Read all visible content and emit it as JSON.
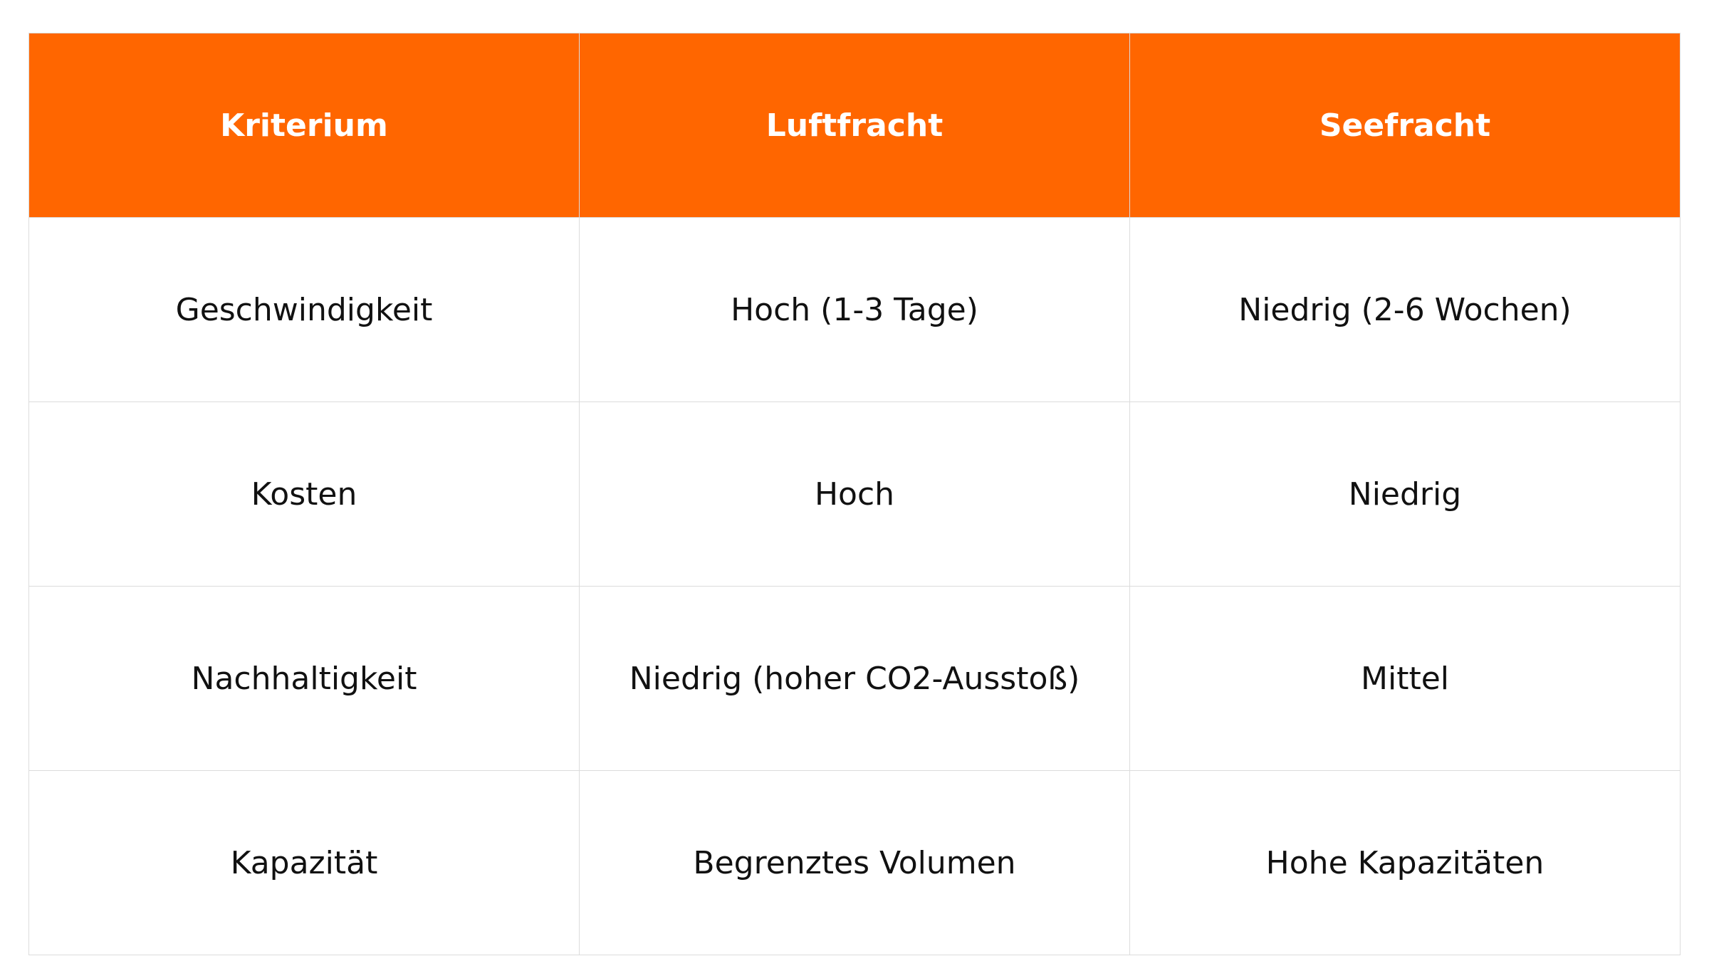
{
  "colors": {
    "header_bg": "#ff6600",
    "header_text": "#ffffff",
    "border": "#dcdcdc"
  },
  "table": {
    "headers": [
      "Kriterium",
      "Luftfracht",
      "Seefracht"
    ],
    "rows": [
      [
        "Geschwindigkeit",
        "Hoch (1-3 Tage)",
        "Niedrig (2-6 Wochen)"
      ],
      [
        "Kosten",
        "Hoch",
        "Niedrig"
      ],
      [
        "Nachhaltigkeit",
        "Niedrig (hoher CO2-Ausstoß)",
        "Mittel"
      ],
      [
        "Kapazität",
        "Begrenztes Volumen",
        "Hohe Kapazitäten"
      ]
    ]
  }
}
